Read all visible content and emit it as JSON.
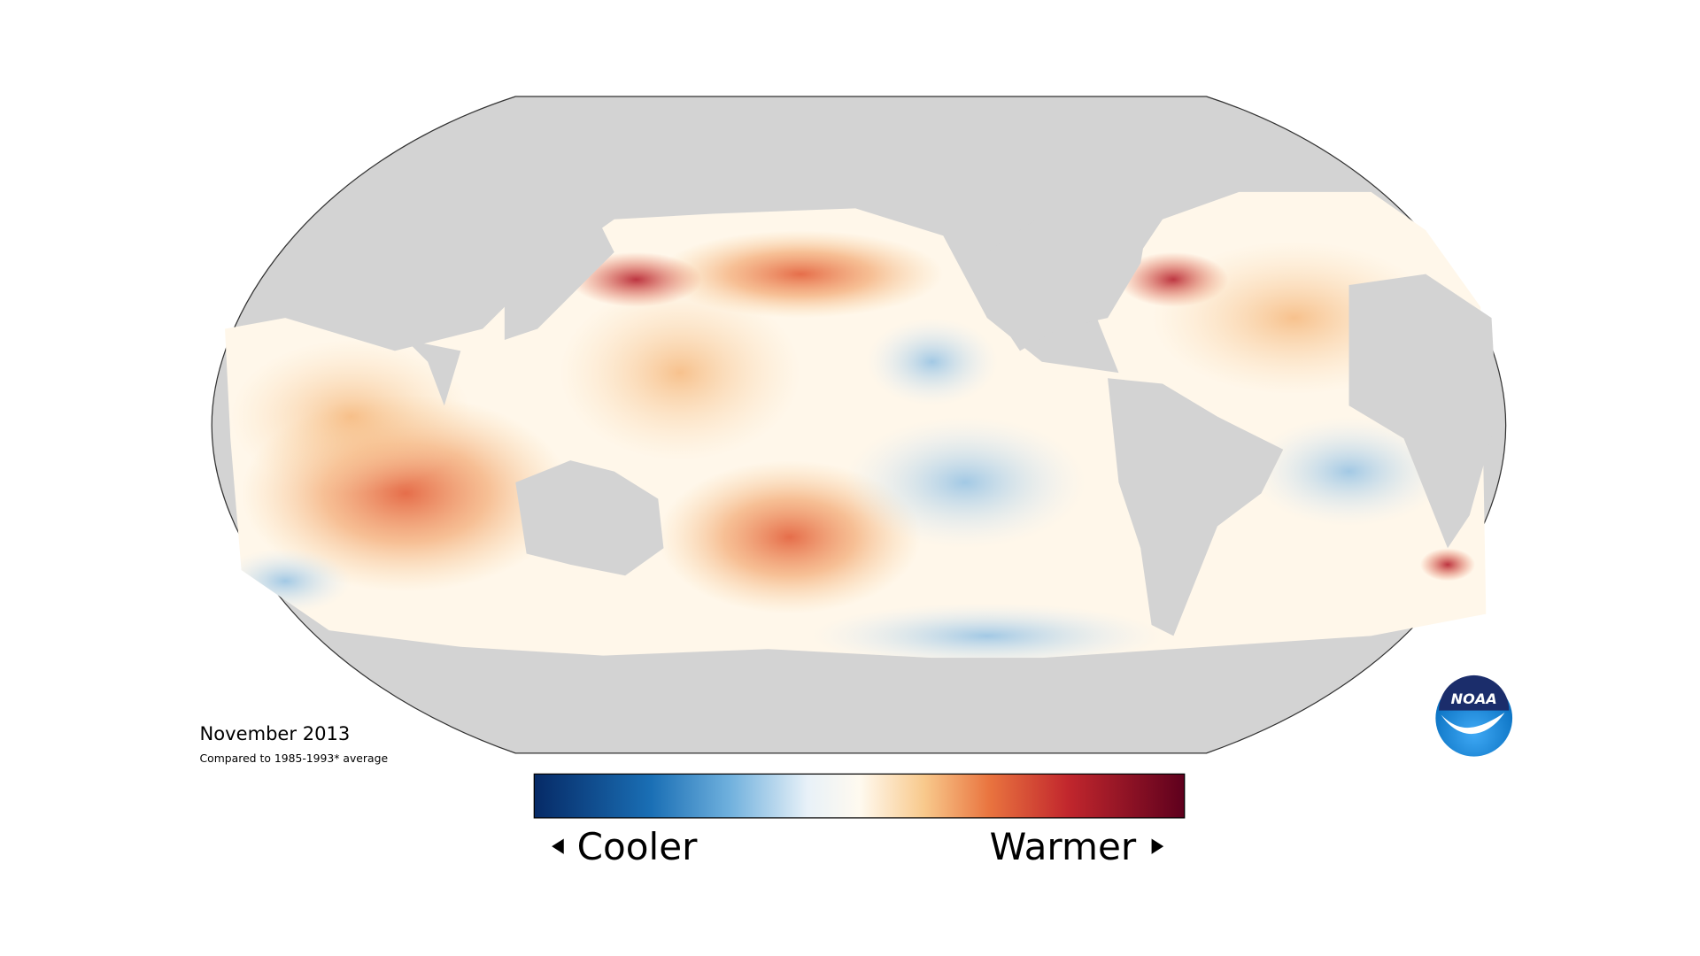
{
  "caption": {
    "title": "November 2013",
    "subtitle": "Compared to 1985-1993* average"
  },
  "legend": {
    "low": "Cooler",
    "high": "Warmer"
  },
  "logo": {
    "text": "NOAA"
  }
}
